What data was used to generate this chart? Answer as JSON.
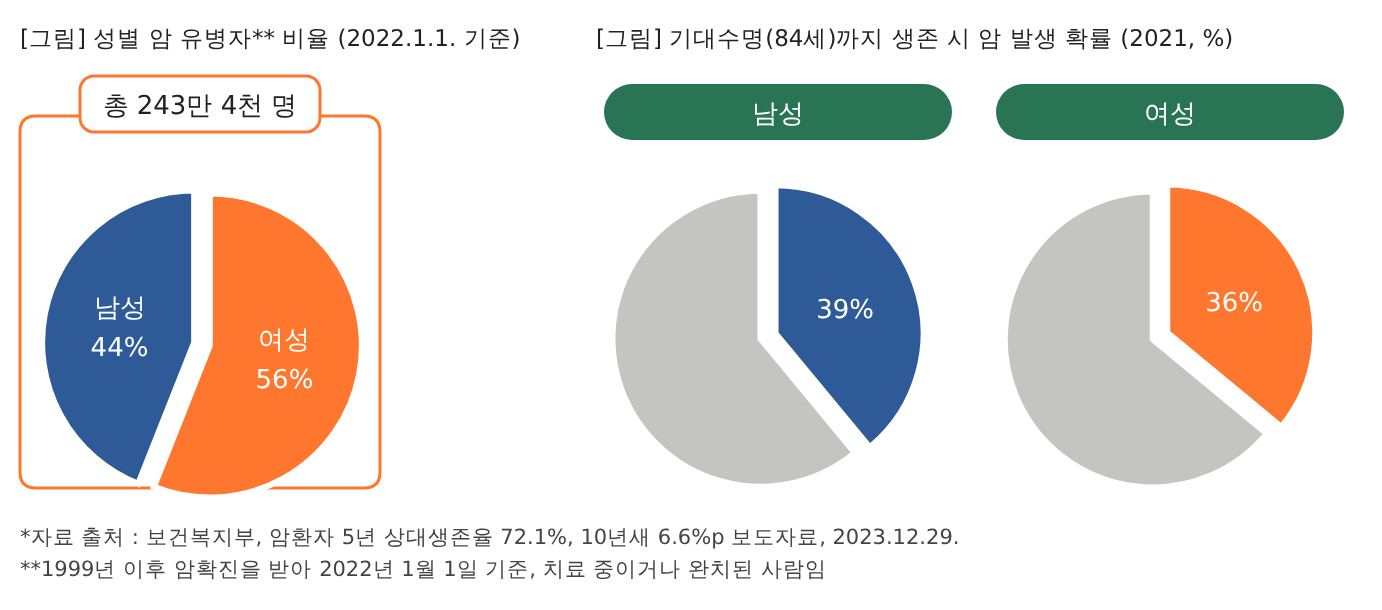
{
  "chart_data": [
    {
      "type": "pie",
      "title": "[그림] 성별 암 유병자** 비율 (2022.1.1. 기준)",
      "subtitle": "총 243만 4천 명",
      "categories": [
        "여성",
        "남성"
      ],
      "values": [
        56,
        44
      ],
      "colors": [
        "#ff772e",
        "#2e5b97"
      ],
      "value_labels": [
        "56%",
        "44%"
      ],
      "annotations": [
        "*자료 출처 : 보건복지부, 암환자 5년 상대생존율 72.1%, 10년새 6.6%p 보도자료, 2023.12.29.",
        "**1999년 이후 암확진을 받아 2022년 1월 1일 기준, 치료 중이거나 완치된 사람임"
      ]
    },
    {
      "type": "pie",
      "title": "[그림] 기대수명(84세)까지 생존 시 암 발생 확률 (2021, %)",
      "subtitle": "남성",
      "categories": [
        null,
        null
      ],
      "values": [
        39,
        61
      ],
      "colors": [
        "#2e5b97",
        "#c4c4c2"
      ],
      "value_labels": [
        "39%",
        null
      ]
    },
    {
      "type": "pie",
      "subtitle": "여성",
      "categories": [
        null,
        null
      ],
      "values": [
        36,
        64
      ],
      "colors": [
        "#ff772e",
        "#c4c4c2"
      ],
      "value_labels": [
        "36%",
        null
      ]
    }
  ]
}
